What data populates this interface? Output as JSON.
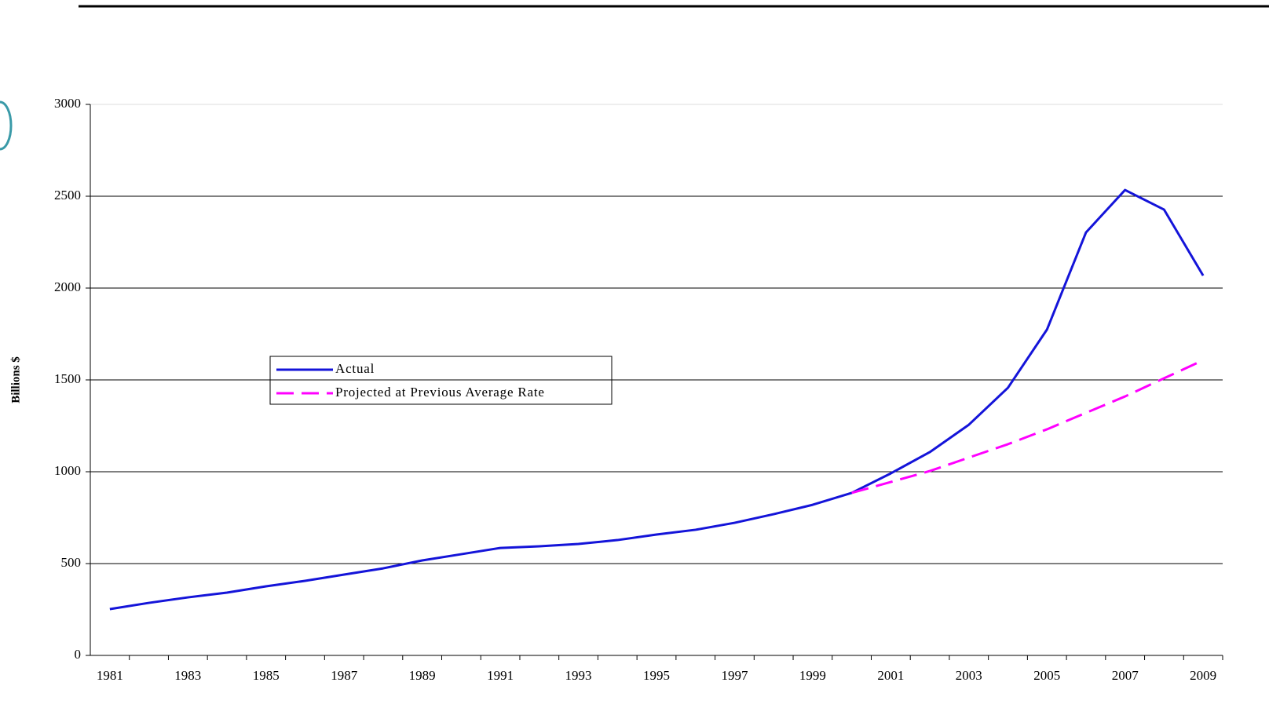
{
  "chart_data": {
    "type": "line",
    "ylabel": "Billions $",
    "categories": [
      "1981",
      null,
      "1983",
      null,
      "1985",
      null,
      "1987",
      null,
      "1989",
      null,
      "1991",
      null,
      "1993",
      null,
      "1995",
      null,
      "1997",
      null,
      "1999",
      null,
      "2001",
      null,
      "2003",
      null,
      "2005",
      null,
      "2007",
      null,
      "2009"
    ],
    "series": [
      {
        "name": "Actual",
        "color": "#1414d9",
        "dash": false,
        "values": [
          252,
          286,
          316,
          342,
          376,
          406,
          440,
          474,
          517,
          551,
          585,
          594,
          607,
          628,
          658,
          684,
          722,
          769,
          820,
          885,
          991,
          1107,
          1256,
          1457,
          1774,
          2303,
          2534,
          2427,
          2068
        ]
      },
      {
        "name": "Projected at Previous Average Rate",
        "color": "#ff00ff",
        "dash": true,
        "values": [
          null,
          null,
          null,
          null,
          null,
          null,
          null,
          null,
          null,
          null,
          null,
          null,
          null,
          null,
          null,
          null,
          null,
          null,
          null,
          885,
          944,
          1004,
          1077,
          1150,
          1231,
          1321,
          1410,
          1509,
          1607
        ]
      }
    ],
    "ylim": [
      0,
      3000
    ],
    "yticks": [
      0,
      500,
      1000,
      1500,
      2000,
      2500,
      3000
    ],
    "grid": true,
    "legend": "left"
  }
}
